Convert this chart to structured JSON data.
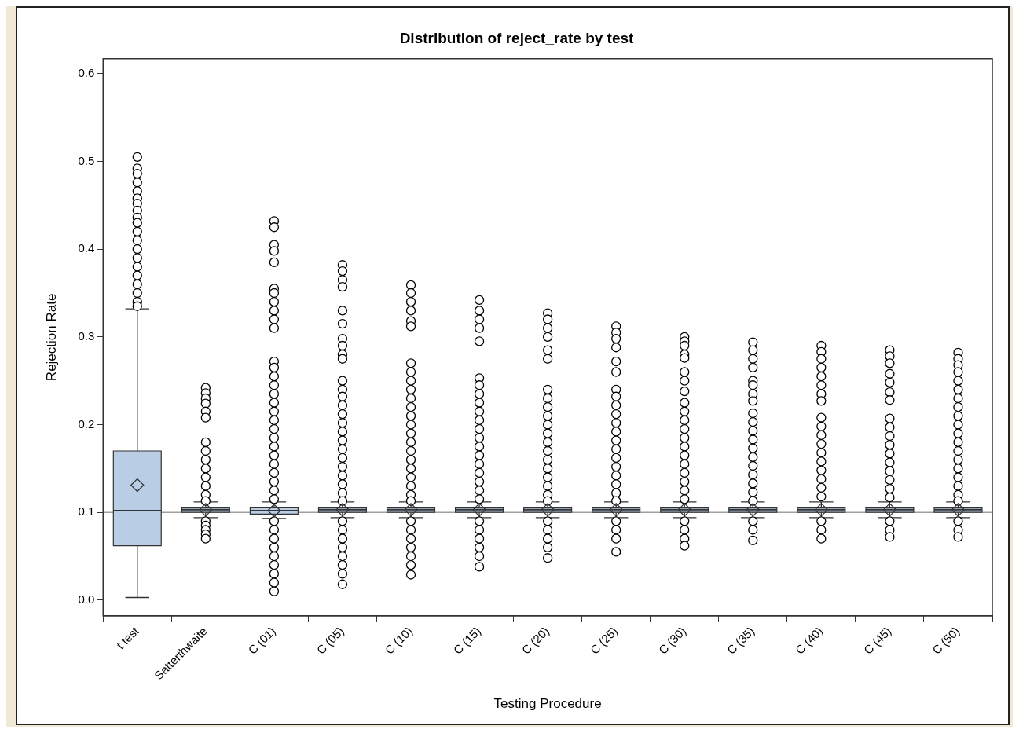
{
  "chart_data": {
    "type": "box",
    "title": "Distribution of reject_rate by test",
    "xlabel": "Testing Procedure",
    "ylabel": "Rejection Rate",
    "categories": [
      "t test",
      "Satterthwaite",
      "C (01)",
      "C (05)",
      "C (10)",
      "C (15)",
      "C (20)",
      "C (25)",
      "C (30)",
      "C (35)",
      "C (40)",
      "C (45)",
      "C (50)"
    ],
    "ylim": [
      -0.018,
      0.617
    ],
    "yticks": [
      {
        "value": 0,
        "label": "0.0"
      },
      0.1,
      0.2,
      0.3,
      0.4,
      0.5,
      0.6
    ],
    "ref_lines": [
      {
        "axis": "y",
        "value": 0.1,
        "color": "#a0a0a0"
      }
    ],
    "series": [
      {
        "color": "#b9cde5",
        "boxes": [
          {
            "low": 0.003,
            "q1": 0.062,
            "median": 0.102,
            "q3": 0.17,
            "high": 0.332,
            "mean": 0.131,
            "outliers": [
              0.505,
              0.492,
              0.486,
              0.476,
              0.466,
              0.458,
              0.452,
              0.444,
              0.436,
              0.43,
              0.42,
              0.41,
              0.4,
              0.39,
              0.38,
              0.37,
              0.36,
              0.35,
              0.34,
              0.335
            ]
          },
          {
            "low": 0.094,
            "q1": 0.1,
            "median": 0.103,
            "q3": 0.106,
            "high": 0.112,
            "mean": 0.103,
            "outliers": [
              0.242,
              0.236,
              0.23,
              0.224,
              0.215,
              0.208,
              0.18,
              0.17,
              0.16,
              0.15,
              0.14,
              0.13,
              0.12,
              0.113,
              0.09,
              0.085,
              0.08,
              0.075,
              0.07
            ]
          },
          {
            "low": 0.093,
            "q1": 0.098,
            "median": 0.102,
            "q3": 0.106,
            "high": 0.112,
            "mean": 0.102,
            "outliers": [
              0.432,
              0.425,
              0.405,
              0.398,
              0.385,
              0.355,
              0.35,
              0.34,
              0.33,
              0.32,
              0.31,
              0.272,
              0.265,
              0.255,
              0.245,
              0.235,
              0.225,
              0.215,
              0.205,
              0.195,
              0.185,
              0.175,
              0.165,
              0.155,
              0.145,
              0.135,
              0.125,
              0.115,
              0.09,
              0.08,
              0.07,
              0.06,
              0.05,
              0.04,
              0.03,
              0.02,
              0.01
            ]
          },
          {
            "low": 0.094,
            "q1": 0.1,
            "median": 0.103,
            "q3": 0.106,
            "high": 0.112,
            "mean": 0.103,
            "outliers": [
              0.382,
              0.375,
              0.365,
              0.357,
              0.33,
              0.315,
              0.298,
              0.29,
              0.28,
              0.275,
              0.25,
              0.24,
              0.232,
              0.222,
              0.212,
              0.202,
              0.192,
              0.182,
              0.172,
              0.162,
              0.152,
              0.142,
              0.132,
              0.122,
              0.113,
              0.09,
              0.08,
              0.07,
              0.06,
              0.05,
              0.04,
              0.03,
              0.018
            ]
          },
          {
            "low": 0.094,
            "q1": 0.1,
            "median": 0.103,
            "q3": 0.106,
            "high": 0.112,
            "mean": 0.103,
            "outliers": [
              0.359,
              0.35,
              0.34,
              0.33,
              0.318,
              0.312,
              0.27,
              0.26,
              0.25,
              0.24,
              0.23,
              0.22,
              0.21,
              0.2,
              0.19,
              0.18,
              0.17,
              0.16,
              0.15,
              0.14,
              0.13,
              0.12,
              0.113,
              0.09,
              0.08,
              0.07,
              0.06,
              0.05,
              0.04,
              0.029
            ]
          },
          {
            "low": 0.094,
            "q1": 0.1,
            "median": 0.103,
            "q3": 0.106,
            "high": 0.112,
            "mean": 0.103,
            "outliers": [
              0.342,
              0.33,
              0.32,
              0.31,
              0.295,
              0.253,
              0.245,
              0.235,
              0.225,
              0.215,
              0.205,
              0.195,
              0.185,
              0.175,
              0.165,
              0.155,
              0.145,
              0.135,
              0.125,
              0.115,
              0.09,
              0.08,
              0.07,
              0.06,
              0.05,
              0.038
            ]
          },
          {
            "low": 0.094,
            "q1": 0.1,
            "median": 0.103,
            "q3": 0.106,
            "high": 0.112,
            "mean": 0.103,
            "outliers": [
              0.327,
              0.32,
              0.31,
              0.3,
              0.285,
              0.275,
              0.24,
              0.23,
              0.22,
              0.21,
              0.2,
              0.19,
              0.18,
              0.17,
              0.16,
              0.15,
              0.14,
              0.13,
              0.12,
              0.113,
              0.09,
              0.08,
              0.07,
              0.06,
              0.048
            ]
          },
          {
            "low": 0.094,
            "q1": 0.1,
            "median": 0.103,
            "q3": 0.106,
            "high": 0.112,
            "mean": 0.103,
            "outliers": [
              0.312,
              0.305,
              0.298,
              0.288,
              0.272,
              0.26,
              0.24,
              0.232,
              0.222,
              0.212,
              0.202,
              0.192,
              0.182,
              0.172,
              0.162,
              0.152,
              0.142,
              0.132,
              0.122,
              0.113,
              0.09,
              0.08,
              0.07,
              0.055
            ]
          },
          {
            "low": 0.094,
            "q1": 0.1,
            "median": 0.103,
            "q3": 0.106,
            "high": 0.112,
            "mean": 0.103,
            "outliers": [
              0.3,
              0.295,
              0.29,
              0.28,
              0.276,
              0.26,
              0.25,
              0.238,
              0.225,
              0.215,
              0.205,
              0.195,
              0.185,
              0.175,
              0.165,
              0.155,
              0.145,
              0.135,
              0.125,
              0.115,
              0.09,
              0.08,
              0.07,
              0.062
            ]
          },
          {
            "low": 0.094,
            "q1": 0.1,
            "median": 0.103,
            "q3": 0.106,
            "high": 0.112,
            "mean": 0.103,
            "outliers": [
              0.294,
              0.285,
              0.275,
              0.265,
              0.25,
              0.245,
              0.235,
              0.227,
              0.213,
              0.203,
              0.193,
              0.183,
              0.173,
              0.163,
              0.153,
              0.143,
              0.133,
              0.123,
              0.113,
              0.09,
              0.08,
              0.068
            ]
          },
          {
            "low": 0.094,
            "q1": 0.1,
            "median": 0.103,
            "q3": 0.106,
            "high": 0.112,
            "mean": 0.103,
            "outliers": [
              0.29,
              0.283,
              0.275,
              0.265,
              0.255,
              0.245,
              0.235,
              0.227,
              0.208,
              0.198,
              0.188,
              0.178,
              0.168,
              0.158,
              0.148,
              0.138,
              0.128,
              0.118,
              0.09,
              0.08,
              0.07
            ]
          },
          {
            "low": 0.094,
            "q1": 0.1,
            "median": 0.103,
            "q3": 0.106,
            "high": 0.112,
            "mean": 0.103,
            "outliers": [
              0.285,
              0.278,
              0.27,
              0.258,
              0.248,
              0.237,
              0.228,
              0.207,
              0.197,
              0.187,
              0.177,
              0.167,
              0.157,
              0.147,
              0.137,
              0.127,
              0.117,
              0.09,
              0.08,
              0.072
            ]
          },
          {
            "low": 0.094,
            "q1": 0.1,
            "median": 0.103,
            "q3": 0.106,
            "high": 0.112,
            "mean": 0.103,
            "outliers": [
              0.282,
              0.275,
              0.268,
              0.26,
              0.25,
              0.24,
              0.23,
              0.22,
              0.21,
              0.2,
              0.19,
              0.18,
              0.17,
              0.16,
              0.15,
              0.14,
              0.13,
              0.12,
              0.113,
              0.09,
              0.08,
              0.072
            ]
          }
        ]
      }
    ]
  }
}
